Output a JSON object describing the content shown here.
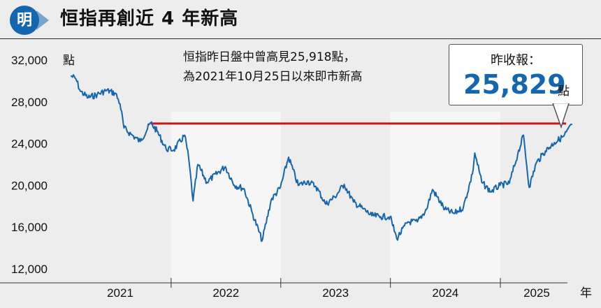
{
  "header": {
    "logo_char": "明",
    "title": "恒指再創近 4 年新高"
  },
  "annotation": {
    "line1": "恒指昨日盤中曾高見25,918點，",
    "line2": "為2021年10月25日以來即市新高"
  },
  "callout": {
    "label": "昨收報：",
    "value": "25,829",
    "unit": "點"
  },
  "colors": {
    "series": "#1566b0",
    "reference_line": "#c2171d",
    "background": "#ededed",
    "alt_band": "#f6f6f6"
  },
  "chart_data": {
    "type": "line",
    "title": "恒指再創近 4 年新高",
    "y_unit": "點",
    "x_unit": "年",
    "ylim": [
      12000,
      32000
    ],
    "y_ticks": [
      {
        "value": 12000,
        "label": "12,000"
      },
      {
        "value": 16000,
        "label": "16,000"
      },
      {
        "value": 20000,
        "label": "20,000"
      },
      {
        "value": 24000,
        "label": "24,000"
      },
      {
        "value": 28000,
        "label": "28,000"
      },
      {
        "value": 32000,
        "label": "32,000"
      }
    ],
    "x_ticks": [
      "2021",
      "2022",
      "2023",
      "2024",
      "2025"
    ],
    "x_range": [
      "2021-01-01",
      "2025-08-31"
    ],
    "reference_line": {
      "value": 25918,
      "from": "2021-10-25"
    },
    "series": [
      {
        "values": [
          [
            "2021-02-01",
            30500
          ],
          [
            "2021-02-18",
            30200
          ],
          [
            "2021-03-05",
            29000
          ],
          [
            "2021-03-31",
            28400
          ],
          [
            "2021-04-30",
            28700
          ],
          [
            "2021-05-31",
            29100
          ],
          [
            "2021-06-30",
            28800
          ],
          [
            "2021-07-15",
            27800
          ],
          [
            "2021-07-28",
            25500
          ],
          [
            "2021-08-20",
            24900
          ],
          [
            "2021-09-20",
            24200
          ],
          [
            "2021-10-25",
            26000
          ],
          [
            "2021-11-15",
            25200
          ],
          [
            "2021-12-15",
            23500
          ],
          [
            "2022-01-10",
            23400
          ],
          [
            "2022-02-15",
            24800
          ],
          [
            "2022-02-28",
            22700
          ],
          [
            "2022-03-15",
            18500
          ],
          [
            "2022-03-31",
            22000
          ],
          [
            "2022-04-30",
            20300
          ],
          [
            "2022-06-30",
            21800
          ],
          [
            "2022-07-31",
            20000
          ],
          [
            "2022-08-31",
            19700
          ],
          [
            "2022-09-30",
            17200
          ],
          [
            "2022-10-31",
            14700
          ],
          [
            "2022-11-30",
            18600
          ],
          [
            "2022-12-31",
            19800
          ],
          [
            "2023-01-27",
            22700
          ],
          [
            "2023-02-28",
            20000
          ],
          [
            "2023-03-31",
            20400
          ],
          [
            "2023-04-28",
            19900
          ],
          [
            "2023-05-31",
            18200
          ],
          [
            "2023-06-30",
            18900
          ],
          [
            "2023-07-31",
            20100
          ],
          [
            "2023-08-31",
            18400
          ],
          [
            "2023-09-30",
            17800
          ],
          [
            "2023-10-31",
            17100
          ],
          [
            "2023-11-30",
            17000
          ],
          [
            "2023-12-31",
            17000
          ],
          [
            "2024-01-22",
            14900
          ],
          [
            "2024-02-28",
            16500
          ],
          [
            "2024-03-31",
            16500
          ],
          [
            "2024-04-30",
            17700
          ],
          [
            "2024-05-20",
            19600
          ],
          [
            "2024-06-30",
            17700
          ],
          [
            "2024-07-31",
            17300
          ],
          [
            "2024-08-31",
            17900
          ],
          [
            "2024-09-30",
            21100
          ],
          [
            "2024-10-08",
            23100
          ],
          [
            "2024-10-31",
            20300
          ],
          [
            "2024-11-30",
            19400
          ],
          [
            "2024-12-31",
            20000
          ],
          [
            "2025-01-31",
            20200
          ],
          [
            "2025-02-28",
            23000
          ],
          [
            "2025-03-19",
            24800
          ],
          [
            "2025-04-07",
            19800
          ],
          [
            "2025-04-30",
            22100
          ],
          [
            "2025-05-31",
            23300
          ],
          [
            "2025-06-30",
            24100
          ],
          [
            "2025-07-31",
            24700
          ],
          [
            "2025-08-28",
            25829
          ]
        ]
      }
    ],
    "grid": false
  }
}
